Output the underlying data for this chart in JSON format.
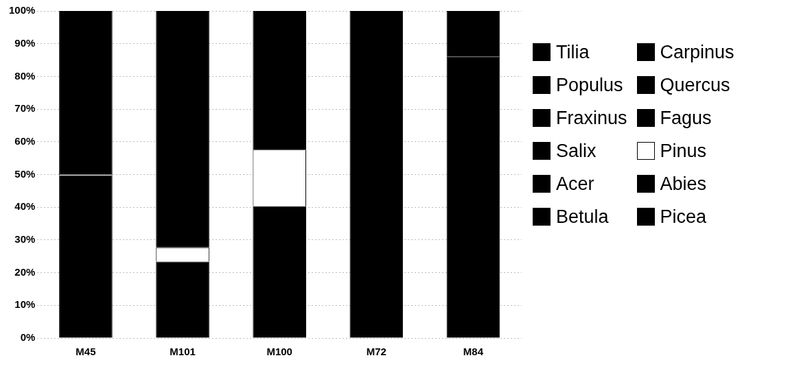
{
  "chart_data": {
    "type": "bar",
    "stacked": true,
    "categories": [
      "M45",
      "M101",
      "M100",
      "M72",
      "M84"
    ],
    "ylim": [
      0,
      100
    ],
    "yticks": [
      {
        "value": 0,
        "label": "0%"
      },
      {
        "value": 10,
        "label": "10%"
      },
      {
        "value": 20,
        "label": "20%"
      },
      {
        "value": 30,
        "label": "30%"
      },
      {
        "value": 40,
        "label": "40%"
      },
      {
        "value": 50,
        "label": "50%"
      },
      {
        "value": 60,
        "label": "60%"
      },
      {
        "value": 70,
        "label": "70%"
      },
      {
        "value": 80,
        "label": "80%"
      },
      {
        "value": 90,
        "label": "90%"
      },
      {
        "value": 100,
        "label": "100%"
      }
    ],
    "grid": "y",
    "legend": "right",
    "series": [
      {
        "name": "Tilia",
        "color": "#000000",
        "values": [
          null,
          null,
          null,
          null,
          null
        ]
      },
      {
        "name": "Populus",
        "color": "#000000",
        "values": [
          null,
          null,
          null,
          null,
          null
        ]
      },
      {
        "name": "Fraxinus",
        "color": "#000000",
        "values": [
          null,
          null,
          null,
          null,
          null
        ]
      },
      {
        "name": "Salix",
        "color": "#000000",
        "values": [
          null,
          null,
          null,
          null,
          null
        ]
      },
      {
        "name": "Acer",
        "color": "#000000",
        "values": [
          null,
          null,
          null,
          null,
          null
        ]
      },
      {
        "name": "Betula",
        "color": "#000000",
        "values": [
          null,
          null,
          null,
          null,
          null
        ]
      },
      {
        "name": "Carpinus",
        "color": "#000000",
        "values": [
          null,
          null,
          null,
          null,
          null
        ]
      },
      {
        "name": "Quercus",
        "color": "#000000",
        "values": [
          null,
          null,
          null,
          null,
          null
        ]
      },
      {
        "name": "Fagus",
        "color": "#000000",
        "values": [
          49.8,
          23.4,
          40.3,
          100,
          86
        ]
      },
      {
        "name": "Pinus",
        "color": "#ffffff",
        "values": [
          0.3,
          4.3,
          17.3,
          null,
          null
        ]
      },
      {
        "name": "Abies",
        "color": "#000000",
        "values": [
          49.9,
          72.3,
          42.4,
          null,
          null
        ]
      },
      {
        "name": "Picea",
        "color": "#000000",
        "values": [
          null,
          null,
          null,
          null,
          14
        ]
      }
    ]
  }
}
